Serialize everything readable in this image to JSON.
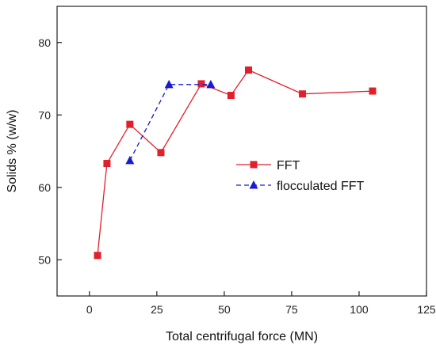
{
  "chart_data": {
    "type": "line",
    "xlabel": "Total centrifugal force (MN)",
    "ylabel": "Solids % (w/w)",
    "xlim": [
      -12,
      125
    ],
    "ylim": [
      45,
      85
    ],
    "xticks": [
      0,
      25,
      50,
      75,
      100,
      125
    ],
    "yticks": [
      50,
      60,
      70,
      80
    ],
    "legend_position": "center-right",
    "grid": false,
    "series": [
      {
        "name": "FFT",
        "color": "#e0202a",
        "line_style": "solid",
        "marker": "square",
        "x": [
          3,
          6.5,
          15,
          26.5,
          41.5,
          52.5,
          59,
          79,
          105
        ],
        "y": [
          50.6,
          63.3,
          68.7,
          64.8,
          74.3,
          72.7,
          76.2,
          72.9,
          73.3
        ]
      },
      {
        "name": "flocculated FFT",
        "color": "#1a1ad0",
        "line_style": "dashed",
        "marker": "triangle",
        "x": [
          15,
          29.5,
          45
        ],
        "y": [
          63.7,
          74.2,
          74.2
        ]
      }
    ]
  }
}
